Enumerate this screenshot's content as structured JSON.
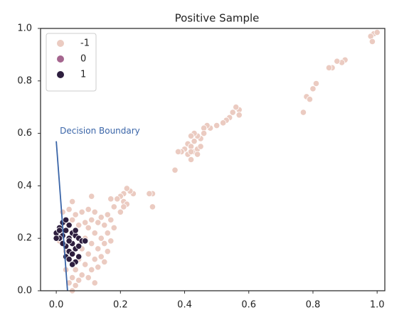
{
  "chart_data": {
    "type": "scatter",
    "title": "Positive Sample",
    "xlim": [
      -0.049,
      1.024
    ],
    "ylim": [
      0,
      1
    ],
    "xticks": [
      {
        "value": 0,
        "label": "0.0"
      },
      0.2,
      0.4,
      0.6,
      0.8,
      {
        "value": 1,
        "label": "1.0"
      }
    ],
    "yticks": [
      {
        "value": 0,
        "label": "0.0"
      },
      0.2,
      0.4,
      0.6,
      0.8,
      {
        "value": 1,
        "label": "1.0"
      }
    ],
    "legend": "upper left",
    "series": [
      {
        "name": "-1",
        "color": "#ebcbc1",
        "x": [
          0.99,
          0.98,
          1.0,
          0.985,
          0.9,
          0.89,
          0.875,
          0.86,
          0.85,
          0.81,
          0.8,
          0.78,
          0.79,
          0.77,
          0.57,
          0.56,
          0.55,
          0.57,
          0.54,
          0.53,
          0.52,
          0.5,
          0.48,
          0.47,
          0.46,
          0.46,
          0.45,
          0.44,
          0.43,
          0.42,
          0.43,
          0.41,
          0.42,
          0.4,
          0.41,
          0.42,
          0.43,
          0.44,
          0.45,
          0.44,
          0.42,
          0.39,
          0.38,
          0.37,
          0.3,
          0.29,
          0.3,
          0.24,
          0.23,
          0.22,
          0.21,
          0.2,
          0.19,
          0.17,
          0.21,
          0.22,
          0.2,
          0.21,
          0.18,
          0.11,
          0.05,
          0.02,
          0.04,
          0.06,
          0.08,
          0.1,
          0.12,
          0.14,
          0.16,
          0.17,
          0.15,
          0.13,
          0.11,
          0.09,
          0.07,
          0.05,
          0.03,
          0.16,
          0.14,
          0.12,
          0.1,
          0.15,
          0.13,
          0.11,
          0.09,
          0.14,
          0.12,
          0.1,
          0.08,
          0.13,
          0.11,
          0.09,
          0.07,
          0.1,
          0.08,
          0.06,
          0.05,
          0.06,
          0.05,
          0.04,
          0.07,
          0.15,
          0.16,
          0.03,
          0.02,
          0.01,
          0.04,
          0.12,
          0.03,
          0.17,
          0.18
        ],
        "values": [
          0.98,
          0.97,
          0.985,
          0.95,
          0.88,
          0.87,
          0.875,
          0.85,
          0.85,
          0.79,
          0.77,
          0.74,
          0.73,
          0.68,
          0.69,
          0.7,
          0.68,
          0.67,
          0.66,
          0.65,
          0.64,
          0.63,
          0.62,
          0.63,
          0.62,
          0.6,
          0.58,
          0.59,
          0.6,
          0.59,
          0.57,
          0.56,
          0.55,
          0.54,
          0.52,
          0.5,
          0.53,
          0.54,
          0.55,
          0.52,
          0.53,
          0.53,
          0.53,
          0.46,
          0.37,
          0.37,
          0.32,
          0.37,
          0.38,
          0.39,
          0.37,
          0.36,
          0.35,
          0.35,
          0.34,
          0.33,
          0.3,
          0.32,
          0.32,
          0.36,
          0.34,
          0.3,
          0.31,
          0.29,
          0.3,
          0.31,
          0.3,
          0.28,
          0.29,
          0.27,
          0.25,
          0.26,
          0.27,
          0.26,
          0.25,
          0.27,
          0.26,
          0.22,
          0.2,
          0.22,
          0.24,
          0.18,
          0.16,
          0.18,
          0.2,
          0.13,
          0.12,
          0.14,
          0.16,
          0.09,
          0.08,
          0.1,
          0.12,
          0.05,
          0.06,
          0.08,
          0.05,
          0.02,
          0.0,
          0.03,
          0.04,
          0.11,
          0.15,
          0.15,
          0.22,
          0.19,
          0.12,
          0.03,
          0.08,
          0.19,
          0.24
        ]
      },
      {
        "name": "0",
        "color": "#a5668f",
        "x": [],
        "values": []
      },
      {
        "name": "1",
        "color": "#2d1e3e",
        "x": [
          0.0,
          0.01,
          0.02,
          0.01,
          0.02,
          0.03,
          0.03,
          0.04,
          0.05,
          0.04,
          0.06,
          0.07,
          0.05,
          0.03,
          0.04,
          0.06,
          0.05,
          0.03,
          0.04,
          0.06,
          0.05,
          0.07,
          0.08,
          0.09,
          0.02,
          0.0,
          0.01,
          0.06,
          0.07,
          0.04
        ],
        "values": [
          0.22,
          0.24,
          0.21,
          0.2,
          0.26,
          0.27,
          0.23,
          0.25,
          0.22,
          0.2,
          0.21,
          0.2,
          0.18,
          0.17,
          0.15,
          0.16,
          0.14,
          0.13,
          0.12,
          0.11,
          0.1,
          0.17,
          0.19,
          0.19,
          0.18,
          0.2,
          0.23,
          0.23,
          0.13,
          0.19
        ]
      }
    ],
    "annotations": [
      {
        "text": "Decision Boundary",
        "x": [
          0,
          0.035
        ],
        "y": [
          0.57,
          0
        ],
        "color": "#3a65a8"
      }
    ]
  }
}
